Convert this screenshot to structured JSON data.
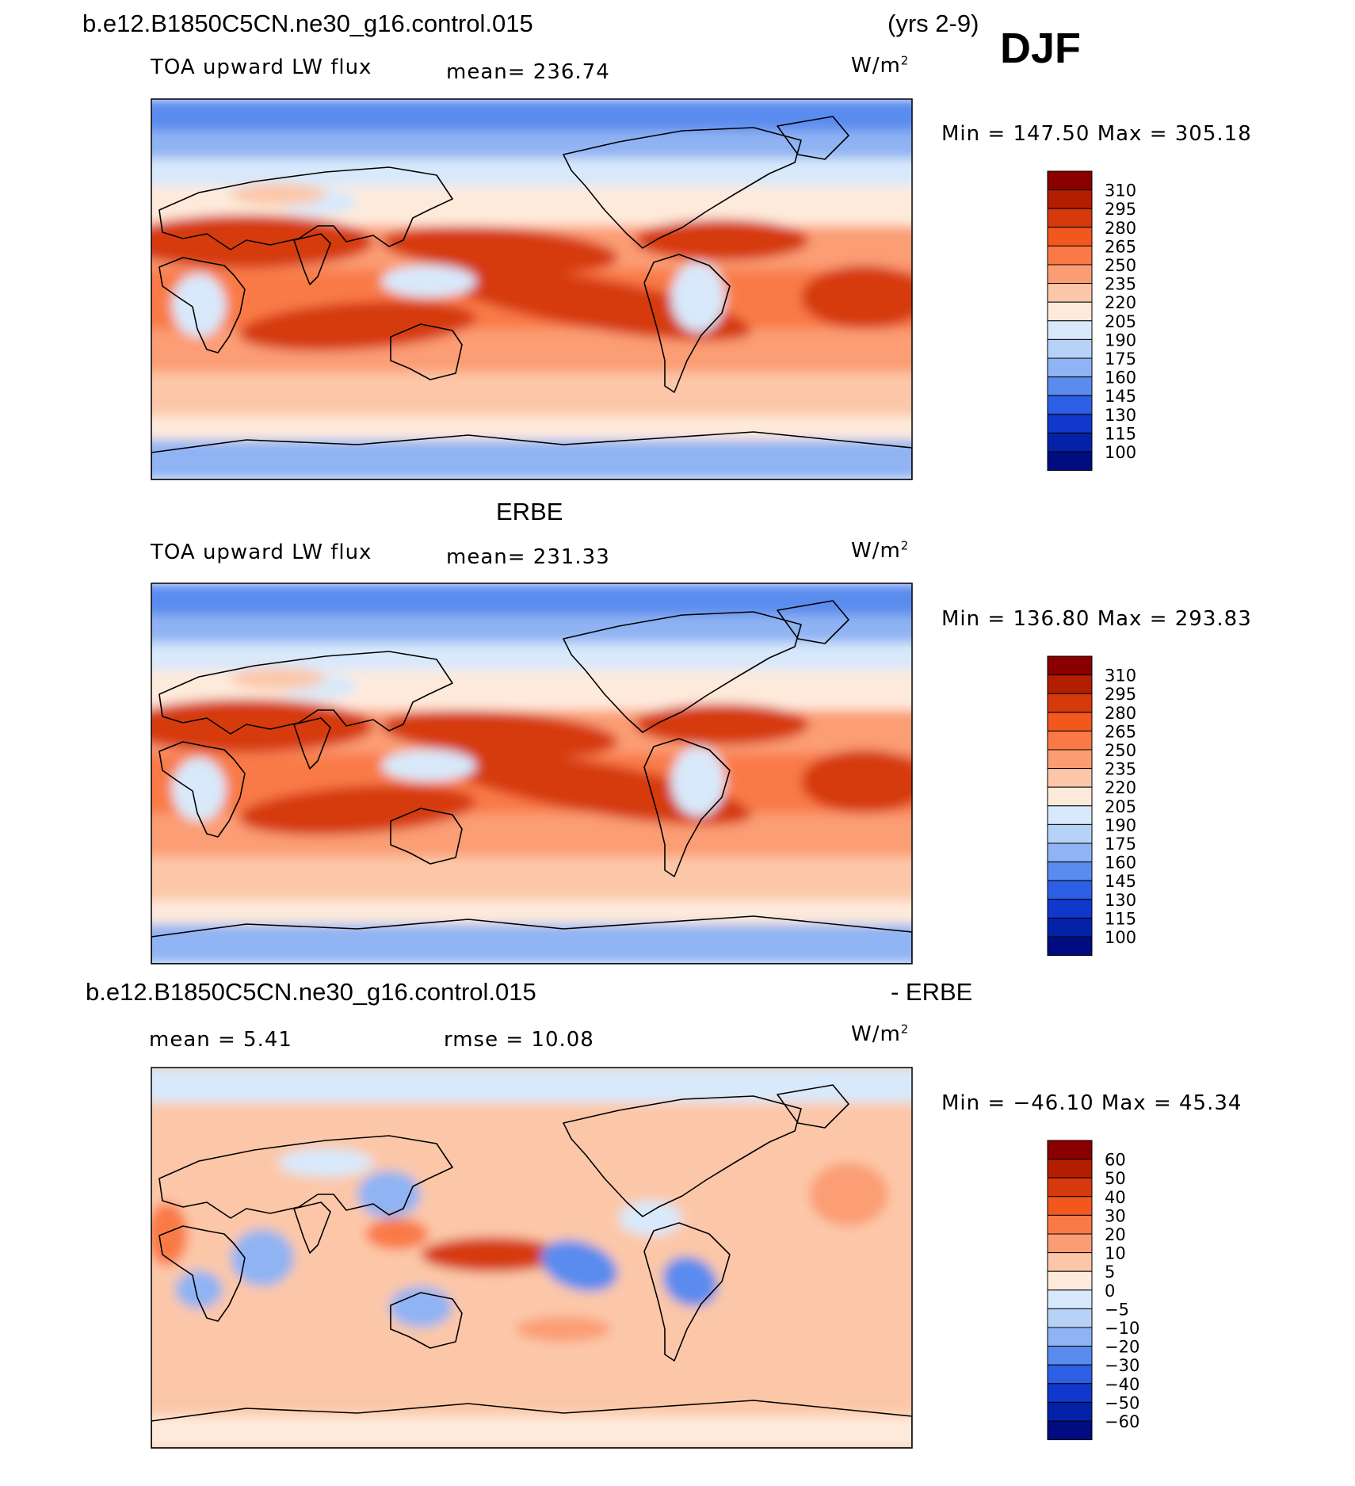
{
  "header": {
    "case_name": "b.e12.B1850C5CN.ne30_g16.control.015",
    "years": "(yrs 2-9)",
    "season": "DJF"
  },
  "panels": [
    {
      "variable": "TOA upward LW flux",
      "mean_text": "mean= 236.74",
      "units": "W/m",
      "units_sup": "2",
      "minmax_text": "Min = 147.50 Max = 305.18"
    },
    {
      "title": "ERBE",
      "variable": "TOA upward LW flux",
      "mean_text": "mean= 231.33",
      "units": "W/m",
      "units_sup": "2",
      "minmax_text": "Min = 136.80 Max = 293.83"
    },
    {
      "title_left": "b.e12.B1850C5CN.ne30_g16.control.015",
      "title_right": "- ERBE",
      "mean_text": "mean =    5.41",
      "rmse_text": "rmse =   10.08",
      "units": "W/m",
      "units_sup": "2",
      "minmax_text": "Min = −46.10 Max =   45.34"
    }
  ],
  "colorbars": {
    "flux_levels": [
      "310",
      "295",
      "280",
      "265",
      "250",
      "235",
      "220",
      "205",
      "190",
      "175",
      "160",
      "145",
      "130",
      "115",
      "100"
    ],
    "diff_levels": [
      "60",
      "50",
      "40",
      "30",
      "20",
      "10",
      "5",
      "0",
      "−5",
      "−10",
      "−20",
      "−30",
      "−40",
      "−50",
      "−60"
    ],
    "colors": [
      "#8a0000",
      "#b41e00",
      "#d63a0c",
      "#f2581e",
      "#f97a46",
      "#fb9d74",
      "#fcc7a8",
      "#feeadb",
      "#d8e9fb",
      "#b7d2f7",
      "#8fb3f3",
      "#5a8bee",
      "#2d5fe6",
      "#1138cc",
      "#0422a8",
      "#000c80"
    ]
  },
  "map_colors": {
    "high": "#d63a0c",
    "warm": "#f97a46",
    "mid_warm": "#fb9d74",
    "light_warm": "#fcc7a8",
    "neutral": "#feeadb",
    "light_cool": "#d8e9fb",
    "cool": "#8fb3f3",
    "cold": "#5a8bee"
  }
}
